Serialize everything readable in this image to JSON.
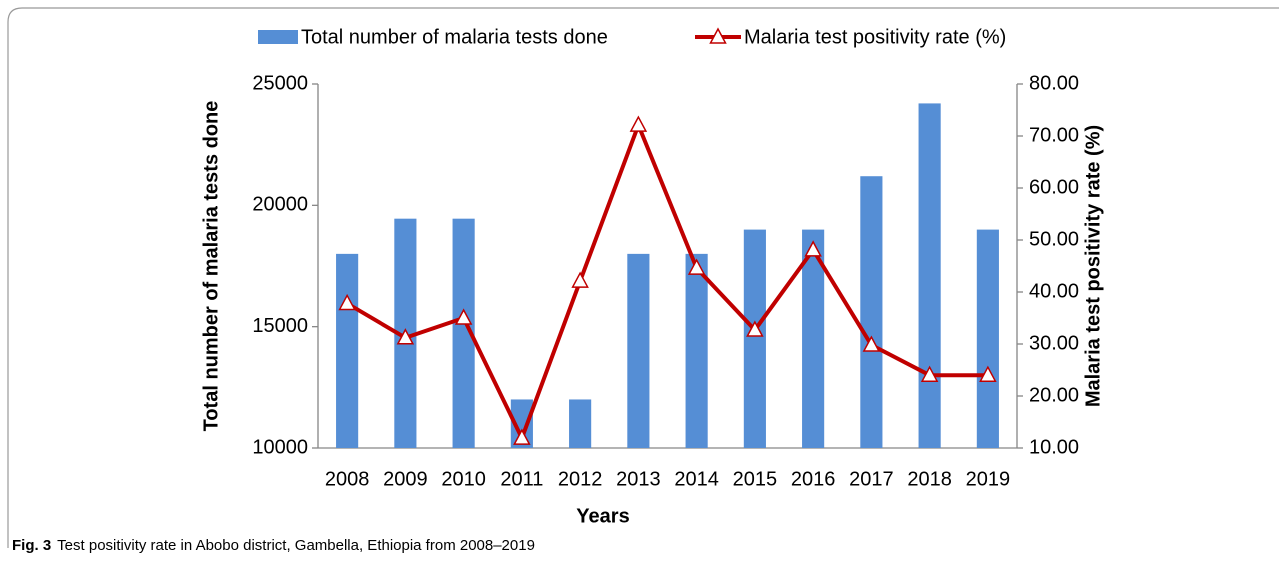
{
  "chart_data": {
    "type": "bar_line",
    "categories": [
      "2008",
      "2009",
      "2010",
      "2011",
      "2012",
      "2013",
      "2014",
      "2015",
      "2016",
      "2017",
      "2018",
      "2019"
    ],
    "series": [
      {
        "name": "Total number of malaria tests done",
        "color": "#558ed5",
        "type": "bar",
        "axis": "y",
        "values": [
          18000,
          19450,
          19450,
          12000,
          12000,
          18000,
          18000,
          19000,
          19000,
          21200,
          24200,
          19000
        ]
      },
      {
        "name": "Malaria test positivity rate (%)",
        "color": "#c00000",
        "type": "line",
        "axis": "y2",
        "values": [
          37.8,
          31.2,
          35.0,
          11.9,
          42.1,
          72.1,
          44.6,
          32.7,
          48.1,
          29.8,
          24.0,
          24.0
        ]
      }
    ],
    "xlabel": "Years",
    "ylabel": "Total number of malaria tests done",
    "y2label": "Malaria test positivity rate (%)",
    "ylim": [
      10000,
      25000
    ],
    "yticks": [
      10000,
      15000,
      20000,
      25000
    ],
    "y2lim": [
      10,
      80
    ],
    "y2ticks": [
      {
        "value": 10,
        "label": "10.00"
      },
      {
        "value": 20,
        "label": "20.00"
      },
      {
        "value": 30,
        "label": "30.00"
      },
      {
        "value": 40,
        "label": "40.00"
      },
      {
        "value": 50,
        "label": "50.00"
      },
      {
        "value": 60,
        "label": "60.00"
      },
      {
        "value": 70,
        "label": "70.00"
      },
      {
        "value": 80,
        "label": "80.00"
      }
    ],
    "legend": "top"
  },
  "caption": {
    "label": "Fig. 3",
    "text": "Test positivity rate in Abobo district, Gambella, Ethiopia from 2008–2019"
  }
}
